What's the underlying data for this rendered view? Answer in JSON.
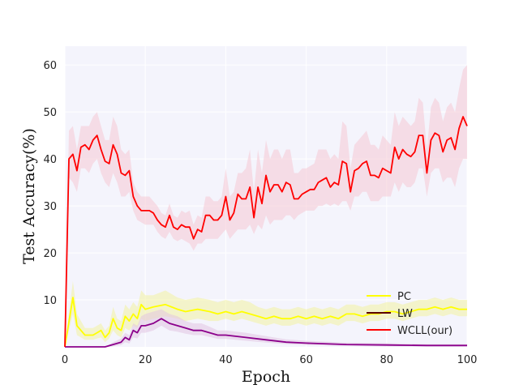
{
  "chart_data": {
    "type": "line",
    "title": "",
    "xlabel": "Epoch",
    "ylabel": "Test Accuracy(%)",
    "xlim": [
      0,
      100
    ],
    "ylim": [
      0,
      64
    ],
    "xticks": [
      0,
      20,
      40,
      60,
      80,
      100
    ],
    "yticks": [
      10,
      20,
      30,
      40,
      50,
      60
    ],
    "grid": true,
    "legend_position": "lower-right",
    "background": "#f4f4fc",
    "series": [
      {
        "name": "PC",
        "color": "#ffff00",
        "band_color": "#f2f2a0",
        "x": [
          0,
          2,
          3,
          5,
          7,
          8,
          9,
          10,
          11,
          12,
          13,
          14,
          15,
          16,
          17,
          18,
          19,
          20,
          22,
          25,
          28,
          30,
          33,
          36,
          38,
          40,
          42,
          44,
          46,
          48,
          50,
          52,
          54,
          56,
          58,
          60,
          62,
          64,
          66,
          68,
          70,
          72,
          74,
          76,
          78,
          80,
          82,
          84,
          86,
          88,
          90,
          92,
          94,
          96,
          98,
          100
        ],
        "values": [
          0,
          10.5,
          4.5,
          2.5,
          2.5,
          3,
          3.5,
          2,
          3,
          6,
          4,
          3.5,
          6.5,
          5.5,
          7,
          6,
          9,
          8,
          8.5,
          9,
          8,
          7.5,
          8,
          7.5,
          7,
          7.5,
          7,
          7.5,
          7,
          6.5,
          6,
          6.5,
          6,
          6,
          6.5,
          6,
          6.5,
          6,
          6.5,
          6,
          7,
          7,
          6.5,
          7,
          7,
          7.5,
          7.5,
          7,
          7.5,
          8,
          8,
          8.5,
          8,
          8.5,
          8,
          8
        ],
        "lower": [
          0,
          7,
          2.5,
          1.5,
          1.5,
          1.8,
          2,
          1,
          1.8,
          3.5,
          2.5,
          2,
          4,
          3.5,
          4.5,
          4,
          6,
          5.5,
          6,
          6.5,
          6,
          5.5,
          6,
          5.5,
          5.5,
          6,
          5.5,
          6,
          5.5,
          5,
          4.5,
          5,
          4.5,
          4.5,
          5,
          4.5,
          5,
          4.5,
          5,
          4.5,
          5.5,
          5.5,
          5,
          5.5,
          5.5,
          6,
          6,
          5.5,
          6,
          6.5,
          6.5,
          7,
          6.5,
          7,
          6.5,
          6.5
        ],
        "upper": [
          0,
          14,
          7,
          4,
          4,
          4.5,
          5,
          3.5,
          4.5,
          8.5,
          6,
          5.5,
          9,
          8,
          9.5,
          8.5,
          12,
          11,
          11,
          12,
          10.5,
          10,
          10.5,
          10,
          9.5,
          10,
          9.5,
          10,
          9.5,
          8.5,
          8,
          8.5,
          8,
          8,
          8.5,
          8,
          8.5,
          8,
          8.5,
          8,
          9,
          9,
          8.5,
          9,
          9,
          9.5,
          9.5,
          9,
          9.5,
          10,
          10,
          10.5,
          10,
          10.5,
          10,
          10
        ]
      },
      {
        "name": "LW",
        "color": "#8b008b",
        "band_color": "#e2c4e2",
        "x": [
          0,
          2,
          5,
          8,
          10,
          12,
          14,
          15,
          16,
          17,
          18,
          19,
          20,
          22,
          24,
          26,
          28,
          30,
          32,
          34,
          36,
          38,
          40,
          45,
          50,
          55,
          60,
          70,
          80,
          90,
          100
        ],
        "values": [
          0,
          0,
          0,
          0,
          0,
          0.5,
          1,
          2,
          1.5,
          3.5,
          3,
          4.5,
          4.5,
          5,
          6,
          5,
          4.5,
          4,
          3.5,
          3.5,
          3,
          2.5,
          2.5,
          2,
          1.5,
          1,
          0.8,
          0.5,
          0.4,
          0.3,
          0.3
        ],
        "lower": [
          0,
          0,
          0,
          0,
          0,
          0.1,
          0.4,
          1,
          0.7,
          2,
          1.8,
          3,
          3,
          3.5,
          4.5,
          3.5,
          3.2,
          2.8,
          2.5,
          2.5,
          2.1,
          1.7,
          1.7,
          1.3,
          0.9,
          0.6,
          0.4,
          0.2,
          0.1,
          0.1,
          0.1
        ],
        "upper": [
          0,
          0,
          0,
          0,
          0,
          1,
          1.8,
          3,
          2.5,
          5,
          4.5,
          6.5,
          7,
          7.5,
          8,
          7,
          6.5,
          5.5,
          5,
          5,
          4.3,
          3.5,
          3.5,
          3,
          2.3,
          1.6,
          1.3,
          0.9,
          0.8,
          0.6,
          0.6
        ]
      },
      {
        "name": "WCLL(our)",
        "color": "#ff0000",
        "band_color": "#f6c9d4",
        "x": [
          0,
          1,
          2,
          3,
          4,
          5,
          6,
          7,
          8,
          9,
          10,
          11,
          12,
          13,
          14,
          15,
          16,
          17,
          18,
          19,
          20,
          21,
          22,
          23,
          24,
          25,
          26,
          27,
          28,
          29,
          30,
          31,
          32,
          33,
          34,
          35,
          36,
          37,
          38,
          39,
          40,
          41,
          42,
          43,
          44,
          45,
          46,
          47,
          48,
          49,
          50,
          51,
          52,
          53,
          54,
          55,
          56,
          57,
          58,
          59,
          60,
          61,
          62,
          63,
          64,
          65,
          66,
          67,
          68,
          69,
          70,
          71,
          72,
          73,
          74,
          75,
          76,
          77,
          78,
          79,
          80,
          81,
          82,
          83,
          84,
          85,
          86,
          87,
          88,
          89,
          90,
          91,
          92,
          93,
          94,
          95,
          96,
          97,
          98,
          99,
          100
        ],
        "values": [
          0,
          40,
          41,
          37.5,
          42.5,
          43,
          42,
          44,
          45,
          42,
          39.5,
          39,
          43,
          41,
          37,
          36.5,
          37.5,
          32,
          30,
          29,
          29,
          29,
          28.5,
          27,
          26,
          25.5,
          28,
          25.5,
          25,
          26,
          25.5,
          25.5,
          23,
          25,
          24.5,
          28,
          28,
          27,
          27,
          28,
          32,
          27,
          28.5,
          32.5,
          31.5,
          31.5,
          34,
          27.5,
          34,
          30.5,
          36.5,
          33,
          34.5,
          34.5,
          33,
          35,
          34.5,
          31.5,
          31.5,
          32.5,
          33,
          33.5,
          33.5,
          35,
          35.5,
          36,
          34,
          35,
          34.5,
          39.5,
          39,
          33,
          37.5,
          38,
          39,
          39.5,
          36.5,
          36.5,
          36,
          38,
          37.5,
          37,
          42.5,
          40,
          42,
          41,
          40.5,
          41.5,
          45,
          45,
          37,
          44,
          45.5,
          45,
          41.5,
          44,
          44.5,
          42,
          46.5,
          49,
          47
        ],
        "lower": [
          0,
          36,
          35,
          33,
          38,
          38,
          37,
          39,
          40,
          37,
          35,
          34,
          37,
          35,
          32,
          32,
          33,
          29,
          27,
          26.5,
          26,
          26,
          26,
          24.5,
          23.5,
          23,
          24.5,
          23,
          22.5,
          23,
          22.5,
          22,
          20.5,
          22,
          22,
          23,
          23,
          23,
          23,
          24,
          25,
          23,
          24,
          25,
          25,
          25,
          26,
          24,
          26,
          25,
          28,
          26,
          27,
          27,
          27,
          28,
          28,
          27,
          28,
          28.5,
          29,
          29,
          29,
          30,
          30,
          30.5,
          30,
          30.5,
          30,
          31,
          31,
          29,
          32,
          32,
          33,
          33,
          31,
          31,
          31,
          32,
          32,
          32,
          35,
          33,
          35,
          34,
          34,
          35,
          38,
          38,
          32,
          37,
          38,
          38,
          35,
          36,
          36,
          34,
          38,
          40,
          40
        ],
        "upper": [
          0,
          46,
          47,
          42,
          47,
          47,
          47,
          49,
          50,
          47,
          44,
          44,
          49,
          47,
          42,
          41,
          42,
          35,
          33,
          32,
          32,
          32,
          31,
          30,
          28.5,
          28,
          30.5,
          28,
          27.5,
          29,
          28.5,
          29,
          26,
          28,
          27.5,
          32,
          32,
          31,
          31,
          32,
          38,
          32,
          33,
          37,
          37,
          38,
          42,
          33,
          42,
          37,
          44,
          40,
          42,
          42,
          40,
          42,
          42,
          37,
          37,
          38,
          38,
          38.5,
          39,
          42,
          42,
          42,
          40,
          41,
          40,
          48,
          47,
          38,
          43,
          44,
          45,
          46,
          43,
          43,
          42,
          45,
          44,
          43,
          50,
          47,
          49,
          48,
          47,
          48,
          53,
          52,
          42,
          51,
          53,
          52,
          48,
          51,
          52,
          50,
          55,
          59,
          60
        ]
      }
    ]
  }
}
